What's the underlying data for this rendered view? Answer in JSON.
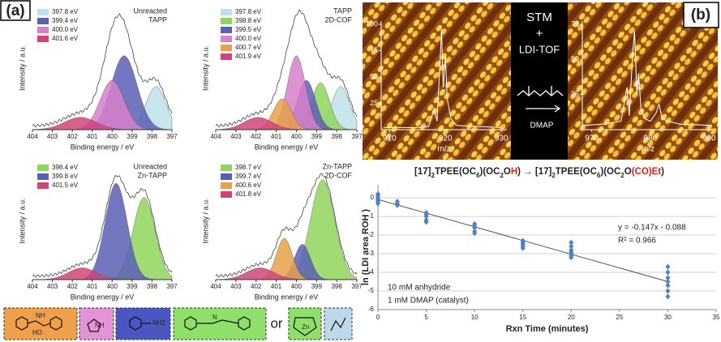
{
  "figure": {
    "label_a": "(a)",
    "label_b": "(b)",
    "stm_lines": [
      "STM",
      "+",
      "LDI-TOF"
    ],
    "catalyst": "DMAP",
    "structures": {
      "or": "or",
      "labels": [
        "HO",
        "NH",
        "NH",
        "NH2",
        "N",
        "Zn"
      ]
    }
  },
  "chart_data": [
    {
      "type": "xps",
      "label_lines": [
        "Unreacted",
        "TAPP"
      ],
      "x_label": "Binding energy / eV",
      "y_label": "Intensity / a.u.",
      "xlim": [
        404,
        397
      ],
      "xticks": [
        404,
        403,
        402,
        401,
        400,
        399,
        398,
        397
      ],
      "ylim": [
        0,
        1
      ],
      "series": [
        {
          "name": "397.8 eV",
          "center": 397.8,
          "height": 0.35,
          "sigma": 0.5,
          "color": "#bfe0ea"
        },
        {
          "name": "399.4 eV",
          "center": 399.4,
          "height": 0.6,
          "sigma": 0.65,
          "color": "#5b5fb5"
        },
        {
          "name": "400.0 eV",
          "center": 400.0,
          "height": 0.4,
          "sigma": 0.6,
          "color": "#d77fc9"
        },
        {
          "name": "401.6 eV",
          "center": 401.6,
          "height": 0.1,
          "sigma": 0.8,
          "color": "#d1447a"
        }
      ]
    },
    {
      "type": "xps",
      "label_lines": [
        "TAPP",
        "2D-COF"
      ],
      "x_label": "Binding energy / eV",
      "y_label": "Intensity / a.u.",
      "xlim": [
        404,
        397
      ],
      "xticks": [
        404,
        403,
        402,
        401,
        400,
        399,
        398,
        397
      ],
      "ylim": [
        0,
        1
      ],
      "series": [
        {
          "name": "397.8 eV",
          "center": 397.8,
          "height": 0.35,
          "sigma": 0.45,
          "color": "#bfe0ea"
        },
        {
          "name": "398.8 eV",
          "center": 398.8,
          "height": 0.38,
          "sigma": 0.45,
          "color": "#8fd65a"
        },
        {
          "name": "399.5 eV",
          "center": 399.5,
          "height": 0.4,
          "sigma": 0.45,
          "color": "#5b5fb5"
        },
        {
          "name": "400.0 eV",
          "center": 400.0,
          "height": 0.6,
          "sigma": 0.45,
          "color": "#d77fc9"
        },
        {
          "name": "400.7 eV",
          "center": 400.7,
          "height": 0.25,
          "sigma": 0.45,
          "color": "#e8a04a"
        },
        {
          "name": "401.9 eV",
          "center": 401.9,
          "height": 0.1,
          "sigma": 0.7,
          "color": "#d1447a"
        }
      ]
    },
    {
      "type": "xps",
      "label_lines": [
        "Unreacted",
        "Zn-TAPP"
      ],
      "x_label": "Binding energy / eV",
      "y_label": "Intensity / a.u.",
      "xlim": [
        404,
        397
      ],
      "xticks": [
        404,
        403,
        402,
        401,
        400,
        399,
        398,
        397
      ],
      "ylim": [
        0,
        1
      ],
      "series": [
        {
          "name": "398.4 eV",
          "center": 398.4,
          "height": 0.7,
          "sigma": 0.55,
          "color": "#8fd65a"
        },
        {
          "name": "399.8 eV",
          "center": 399.8,
          "height": 0.82,
          "sigma": 0.55,
          "color": "#5b5fb5"
        },
        {
          "name": "401.5 eV",
          "center": 401.5,
          "height": 0.1,
          "sigma": 0.7,
          "color": "#d1447a"
        }
      ]
    },
    {
      "type": "xps",
      "label_lines": [
        "Zn-TAPP",
        "2D-COF"
      ],
      "x_label": "Binding energy / eV",
      "y_label": "Intensity / a.u.",
      "xlim": [
        404,
        397
      ],
      "xticks": [
        404,
        403,
        402,
        401,
        400,
        399,
        398,
        397
      ],
      "ylim": [
        0,
        1
      ],
      "series": [
        {
          "name": "398.7 eV",
          "center": 398.7,
          "height": 0.85,
          "sigma": 0.6,
          "color": "#8fd65a"
        },
        {
          "name": "399.7 eV",
          "center": 399.7,
          "height": 0.3,
          "sigma": 0.4,
          "color": "#5b5fb5"
        },
        {
          "name": "400.6 eV",
          "center": 400.6,
          "height": 0.35,
          "sigma": 0.4,
          "color": "#e8a04a"
        },
        {
          "name": "401.8 eV",
          "center": 401.8,
          "height": 0.1,
          "sigma": 0.7,
          "color": "#d1447a"
        }
      ]
    },
    {
      "type": "spectrum",
      "x_label": "m/z",
      "color": "#ffffff",
      "xlim": [
        908.5,
        931
      ],
      "xticks": [
        910,
        920,
        930
      ],
      "ylim": [
        0,
        100
      ],
      "yticks": [
        25,
        50,
        75,
        100
      ],
      "x": [
        909,
        915,
        917,
        918,
        918.5,
        919,
        919.3,
        919.6,
        920,
        920.3,
        921,
        922,
        930
      ],
      "y": [
        2,
        2,
        3,
        20,
        8,
        60,
        95,
        40,
        70,
        30,
        10,
        4,
        2
      ]
    },
    {
      "type": "spectrum",
      "x_label": "m/z",
      "color": "#ffffff",
      "xlim": [
        968.4,
        990.8
      ],
      "xticks": [
        970,
        980,
        990
      ],
      "ylim": [
        0,
        75
      ],
      "yticks": [
        25,
        50,
        75
      ],
      "x": [
        968.5,
        972,
        975,
        976,
        976.4,
        977,
        977.3,
        977.7,
        978,
        978.4,
        979,
        980,
        981,
        981.5,
        982,
        983,
        985,
        990.5
      ],
      "y": [
        3,
        4,
        6,
        30,
        10,
        55,
        70,
        25,
        40,
        15,
        8,
        6,
        12,
        18,
        8,
        6,
        4,
        3
      ]
    },
    {
      "type": "scatter",
      "title": [
        {
          "text": "[17]"
        },
        {
          "text": "2",
          "sub": true
        },
        {
          "text": "TPEE(OC"
        },
        {
          "text": "6",
          "sub": true
        },
        {
          "text": ")(OC"
        },
        {
          "text": "2",
          "sub": true
        },
        {
          "text": "O"
        },
        {
          "text": "H",
          "color": "#e02020"
        },
        {
          "text": ") → [17]"
        },
        {
          "text": "2",
          "sub": true
        },
        {
          "text": "TPEE(OC"
        },
        {
          "text": "6",
          "sub": true
        },
        {
          "text": ")(OC"
        },
        {
          "text": "2",
          "sub": true
        },
        {
          "text": "O"
        },
        {
          "text": "(CO)Et",
          "color": "#e02020"
        },
        {
          "text": ")"
        }
      ],
      "x_label": "Rxn Time (minutes)",
      "y_label": "ln (LDI area ROH )",
      "color": "#4f81bd",
      "grid": true,
      "xlim": [
        0,
        35
      ],
      "xticks": [
        0,
        5,
        10,
        15,
        20,
        25,
        30,
        35
      ],
      "ylim": [
        -6,
        0.7
      ],
      "yticks": [
        0,
        -1,
        -2,
        -3,
        -4,
        -5,
        -6
      ],
      "x": [
        0,
        0,
        0,
        0,
        0,
        0,
        2,
        2,
        2,
        2,
        5,
        5,
        5,
        5,
        5,
        10,
        10,
        10,
        10,
        10,
        15,
        15,
        15,
        15,
        15,
        20,
        20,
        20,
        20,
        20,
        20,
        20,
        30,
        30,
        30,
        30,
        30,
        30,
        30
      ],
      "values": [
        0.2,
        0.1,
        0,
        -0.1,
        -0.2,
        -0.3,
        -0.2,
        -0.3,
        -0.35,
        -0.4,
        -0.8,
        -0.9,
        -1.0,
        -1.2,
        -1.3,
        -1.4,
        -1.5,
        -1.6,
        -1.8,
        -1.9,
        -2.3,
        -2.4,
        -2.5,
        -2.6,
        -2.7,
        -2.4,
        -2.6,
        -2.8,
        -2.9,
        -3.0,
        -3.1,
        -3.2,
        -3.7,
        -4.0,
        -4.3,
        -4.5,
        -4.7,
        -5.0,
        -5.3
      ],
      "fit": {
        "slope": -0.147,
        "intercept": -0.088
      },
      "annotations": [
        "y = -0.147x - 0.088",
        "R² = 0.966",
        "10 mM anhydride",
        "1 mM DMAP (catalyst)"
      ]
    }
  ]
}
